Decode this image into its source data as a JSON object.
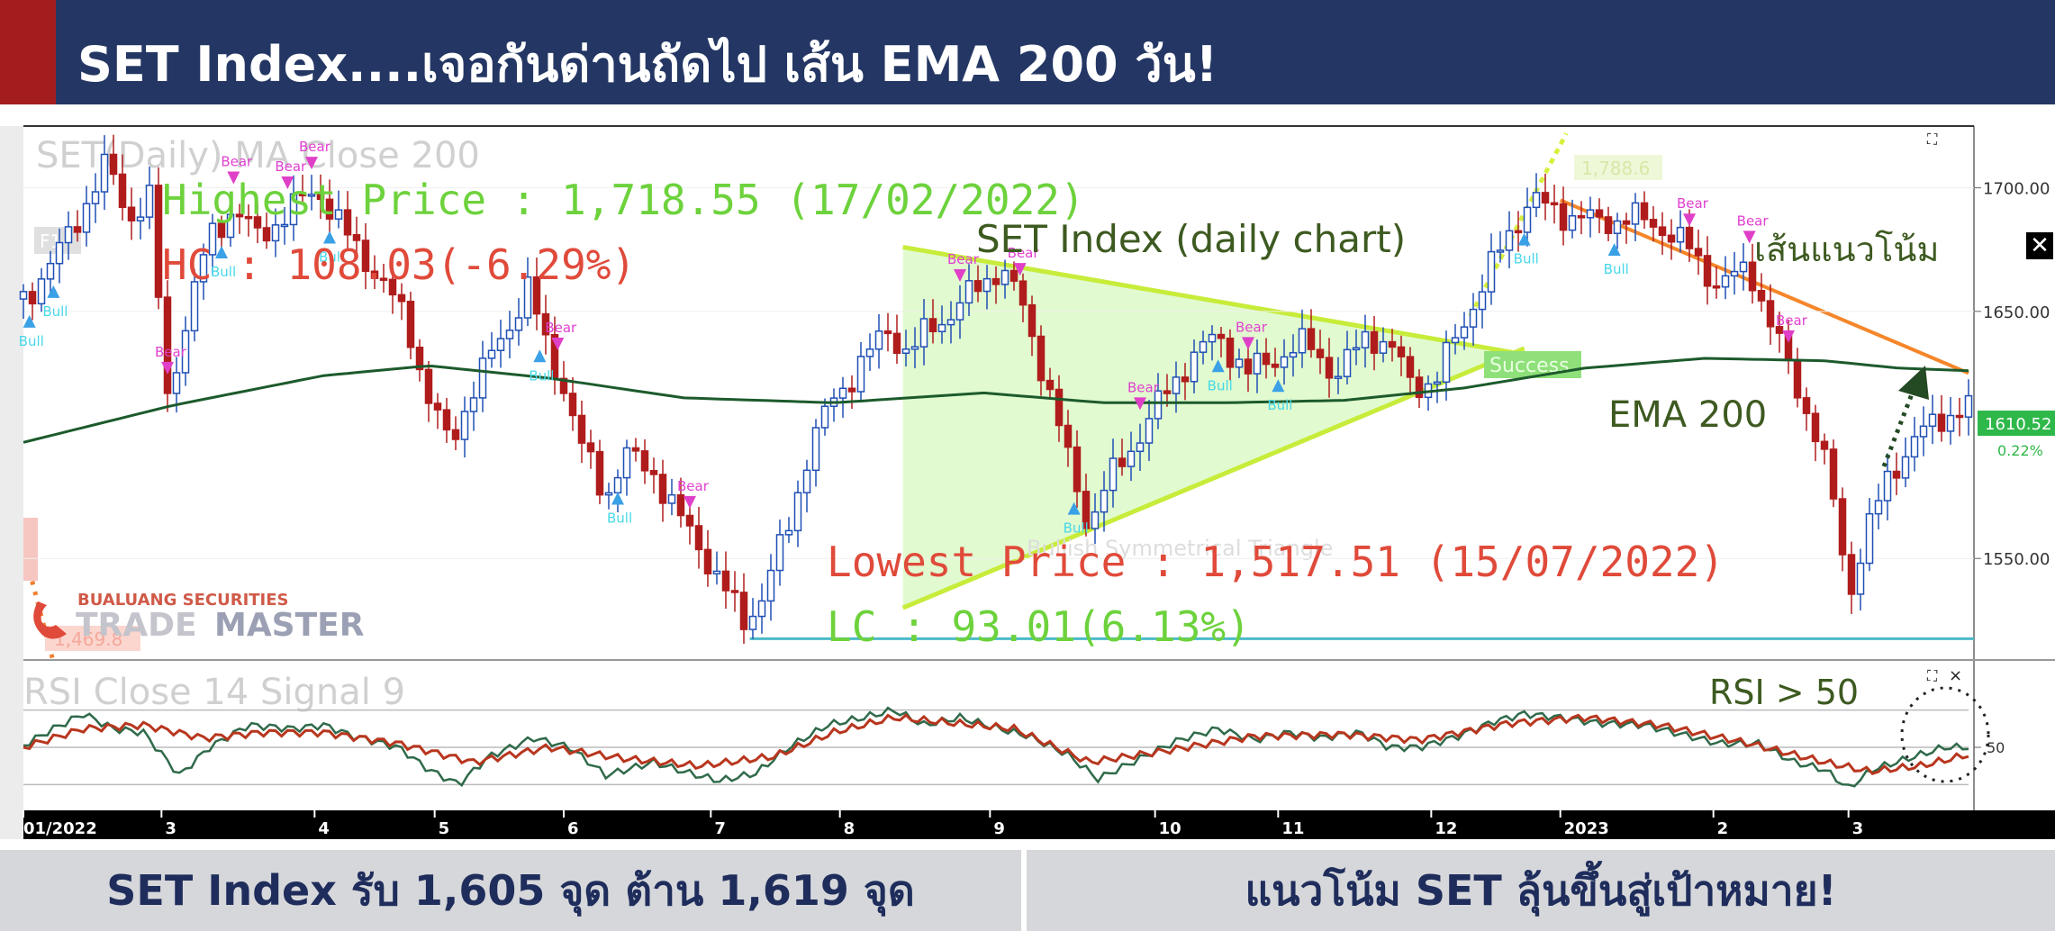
{
  "header": {
    "title": "SET  Index....เจอกันด่านถัดไป เส้น EMA 200 วัน!"
  },
  "footer": {
    "left": "SET Index รับ 1,605 จุด ต้าน 1,619 จุด",
    "right": "แนวโน้ม SET ลุ้นขึ้นสู่เป้าหมาย!"
  },
  "colors": {
    "header_bg": "#243764",
    "accent": "#a31d1f",
    "up": "#1f4fb5",
    "down": "#b01c1c",
    "ema": "#1c5a2c",
    "triangle": "#c8f5a8"
  },
  "chart_data": [
    {
      "type": "candlestick",
      "panel_title": "SET(Daily)  MA  Close 200",
      "annotations": {
        "highest": "Highest Price : 1,718.55 (17/02/2022)",
        "hc": "HC : 108.03(-6.29%)",
        "series_title": "SET Index (daily chart)",
        "trend": "เส้นแนวโน้ม",
        "ema": "EMA 200",
        "lowest": "Lowest Price : 1,517.51 (15/07/2022)",
        "lc": "LC : 93.01(6.13%)",
        "pattern": "Bullish Symmetrical Triangle",
        "success": "Success",
        "target": "1,788.6",
        "left_tag": "1,469.8",
        "brand_small": "BUALUANG SECURITIES",
        "brand_big_a": "TRADE",
        "brand_big_b": "MASTER",
        "f_tag": "F1"
      },
      "last_price": "1610.52",
      "last_change": "0.22%",
      "x_ticks": [
        "01/2022",
        "3",
        "4",
        "5",
        "6",
        "7",
        "8",
        "9",
        "10",
        "11",
        "12",
        "2023",
        "2",
        "3"
      ],
      "y_ticks": [
        "1700.00",
        "1650.00",
        "1550.00"
      ],
      "y_range": [
        1510,
        1725
      ],
      "signals": {
        "bull": "Bull",
        "bear": "Bear"
      },
      "close_path": [
        [
          0,
          1655
        ],
        [
          10,
          1670
        ],
        [
          20,
          1692
        ],
        [
          28,
          1710
        ],
        [
          35,
          1688
        ],
        [
          42,
          1695
        ],
        [
          48,
          1615
        ],
        [
          55,
          1650
        ],
        [
          62,
          1680
        ],
        [
          70,
          1692
        ],
        [
          78,
          1680
        ],
        [
          88,
          1690
        ],
        [
          98,
          1700
        ],
        [
          108,
          1680
        ],
        [
          118,
          1665
        ],
        [
          128,
          1645
        ],
        [
          135,
          1615
        ],
        [
          142,
          1595
        ],
        [
          150,
          1620
        ],
        [
          160,
          1640
        ],
        [
          168,
          1660
        ],
        [
          175,
          1632
        ],
        [
          180,
          1620
        ],
        [
          186,
          1595
        ],
        [
          194,
          1575
        ],
        [
          200,
          1592
        ],
        [
          210,
          1585
        ],
        [
          218,
          1567
        ],
        [
          225,
          1556
        ],
        [
          232,
          1540
        ],
        [
          240,
          1525
        ],
        [
          246,
          1534
        ],
        [
          254,
          1560
        ],
        [
          262,
          1595
        ],
        [
          270,
          1615
        ],
        [
          280,
          1630
        ],
        [
          288,
          1643
        ],
        [
          295,
          1632
        ],
        [
          302,
          1644
        ],
        [
          310,
          1650
        ],
        [
          318,
          1660
        ],
        [
          325,
          1668
        ],
        [
          332,
          1655
        ],
        [
          340,
          1625
        ],
        [
          348,
          1590
        ],
        [
          355,
          1563
        ],
        [
          360,
          1578
        ],
        [
          368,
          1593
        ],
        [
          378,
          1612
        ],
        [
          388,
          1630
        ],
        [
          398,
          1640
        ],
        [
          408,
          1625
        ],
        [
          418,
          1632
        ],
        [
          428,
          1637
        ],
        [
          438,
          1624
        ],
        [
          448,
          1642
        ],
        [
          456,
          1634
        ],
        [
          462,
          1622
        ],
        [
          470,
          1620
        ],
        [
          478,
          1642
        ],
        [
          486,
          1660
        ],
        [
          494,
          1680
        ],
        [
          502,
          1695
        ],
        [
          512,
          1690
        ],
        [
          524,
          1686
        ],
        [
          535,
          1688
        ],
        [
          545,
          1685
        ],
        [
          555,
          1675
        ],
        [
          565,
          1660
        ],
        [
          575,
          1668
        ],
        [
          582,
          1645
        ],
        [
          590,
          1622
        ],
        [
          598,
          1598
        ],
        [
          604,
          1568
        ],
        [
          608,
          1535
        ],
        [
          614,
          1560
        ],
        [
          622,
          1585
        ],
        [
          630,
          1598
        ],
        [
          640,
          1608
        ],
        [
          648,
          1611
        ]
      ],
      "ema200_path": [
        [
          0,
          1597
        ],
        [
          50,
          1612
        ],
        [
          100,
          1624
        ],
        [
          135,
          1628
        ],
        [
          175,
          1623
        ],
        [
          220,
          1615
        ],
        [
          270,
          1613
        ],
        [
          320,
          1617
        ],
        [
          360,
          1613
        ],
        [
          400,
          1613
        ],
        [
          440,
          1614
        ],
        [
          480,
          1619
        ],
        [
          520,
          1627
        ],
        [
          560,
          1631
        ],
        [
          600,
          1630
        ],
        [
          625,
          1627
        ],
        [
          648,
          1626
        ]
      ]
    },
    {
      "type": "line",
      "panel_title": "RSI  Close 14  Signal  9",
      "label": "RSI > 50",
      "mid_label": "50",
      "y_range": [
        20,
        80
      ],
      "rsi_path": [
        [
          0,
          51
        ],
        [
          10,
          60
        ],
        [
          20,
          68
        ],
        [
          30,
          60
        ],
        [
          40,
          58
        ],
        [
          52,
          35
        ],
        [
          62,
          50
        ],
        [
          75,
          62
        ],
        [
          90,
          60
        ],
        [
          100,
          62
        ],
        [
          110,
          56
        ],
        [
          125,
          50
        ],
        [
          135,
          38
        ],
        [
          145,
          30
        ],
        [
          155,
          45
        ],
        [
          170,
          55
        ],
        [
          182,
          50
        ],
        [
          194,
          35
        ],
        [
          210,
          42
        ],
        [
          222,
          36
        ],
        [
          232,
          32
        ],
        [
          244,
          36
        ],
        [
          255,
          50
        ],
        [
          268,
          62
        ],
        [
          280,
          66
        ],
        [
          290,
          70
        ],
        [
          300,
          62
        ],
        [
          312,
          66
        ],
        [
          325,
          60
        ],
        [
          335,
          56
        ],
        [
          348,
          46
        ],
        [
          358,
          33
        ],
        [
          372,
          44
        ],
        [
          385,
          54
        ],
        [
          398,
          60
        ],
        [
          410,
          54
        ],
        [
          422,
          58
        ],
        [
          432,
          55
        ],
        [
          445,
          58
        ],
        [
          455,
          50
        ],
        [
          465,
          50
        ],
        [
          478,
          56
        ],
        [
          490,
          64
        ],
        [
          500,
          68
        ],
        [
          512,
          66
        ],
        [
          525,
          63
        ],
        [
          540,
          62
        ],
        [
          555,
          56
        ],
        [
          565,
          52
        ],
        [
          578,
          52
        ],
        [
          590,
          42
        ],
        [
          600,
          38
        ],
        [
          608,
          28
        ],
        [
          616,
          38
        ],
        [
          628,
          44
        ],
        [
          640,
          50
        ],
        [
          648,
          50
        ]
      ],
      "signal_path": [
        [
          0,
          50
        ],
        [
          20,
          60
        ],
        [
          40,
          62
        ],
        [
          60,
          55
        ],
        [
          80,
          58
        ],
        [
          100,
          58
        ],
        [
          125,
          52
        ],
        [
          150,
          42
        ],
        [
          175,
          50
        ],
        [
          200,
          44
        ],
        [
          225,
          40
        ],
        [
          250,
          45
        ],
        [
          270,
          58
        ],
        [
          290,
          66
        ],
        [
          310,
          63
        ],
        [
          330,
          60
        ],
        [
          355,
          42
        ],
        [
          380,
          48
        ],
        [
          410,
          56
        ],
        [
          440,
          57
        ],
        [
          465,
          54
        ],
        [
          495,
          63
        ],
        [
          520,
          66
        ],
        [
          545,
          62
        ],
        [
          575,
          52
        ],
        [
          600,
          42
        ],
        [
          615,
          37
        ],
        [
          632,
          40
        ],
        [
          648,
          46
        ]
      ]
    }
  ]
}
